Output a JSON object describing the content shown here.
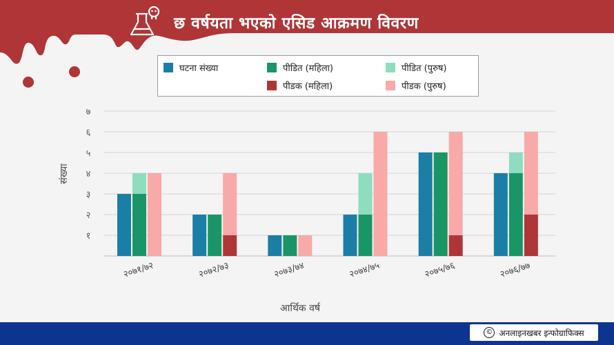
{
  "title": "छ वर्षयता भएको एसिड आक्रमण विवरण",
  "icon": "flask-skull-icon",
  "credit": "अनलाइनखबर इन्फोग्राफिक्स",
  "credit_symbol": "©",
  "colors": {
    "header": "#b03537",
    "footer": "#0d3590",
    "incidents": "#1b7ea6",
    "victim_female": "#1a9566",
    "victim_male": "#8fdcbf",
    "perp_female": "#b03537",
    "perp_male": "#f8a9a8"
  },
  "legend": [
    {
      "label": "घटना संख्या",
      "color": "#1b7ea6"
    },
    {
      "label": "पीडित (महिला)",
      "color": "#1a9566"
    },
    {
      "label": "पीडित (पुरुष)",
      "color": "#8fdcbf"
    },
    {
      "label": "पीडक (महिला)",
      "color": "#b03537"
    },
    {
      "label": "पीडक (पुरुष)",
      "color": "#f8a9a8"
    }
  ],
  "chart_data": {
    "type": "bar",
    "xlabel": "आर्थिक वर्ष",
    "ylabel": "संख्या",
    "ylim": [
      0,
      7
    ],
    "yticks": [
      "१",
      "२",
      "३",
      "४",
      "५",
      "६",
      "७"
    ],
    "grid": true,
    "legend_position": "top",
    "categories": [
      "२०७१/७२",
      "२०७२/७३",
      "२०७३/७४",
      "२०७४/७५",
      "२०७५/७६",
      "२०७६/७७"
    ],
    "series": [
      {
        "name": "घटना संख्या",
        "values": [
          3,
          2,
          1,
          2,
          5,
          4
        ],
        "stack": "incidents",
        "color": "#1b7ea6"
      },
      {
        "name": "पीडित (महिला)",
        "values": [
          3,
          2,
          1,
          2,
          5,
          4
        ],
        "stack": "victims",
        "color": "#1a9566"
      },
      {
        "name": "पीडित (पुरुष)",
        "values": [
          1,
          0,
          0,
          2,
          0,
          1
        ],
        "stack": "victims",
        "color": "#8fdcbf"
      },
      {
        "name": "पीडक (महिला)",
        "values": [
          0,
          1,
          0,
          0,
          1,
          2
        ],
        "stack": "perpetrators",
        "color": "#b03537"
      },
      {
        "name": "पीडक (पुरुष)",
        "values": [
          4,
          3,
          1,
          6,
          5,
          4
        ],
        "stack": "perpetrators",
        "color": "#f8a9a8"
      }
    ]
  }
}
